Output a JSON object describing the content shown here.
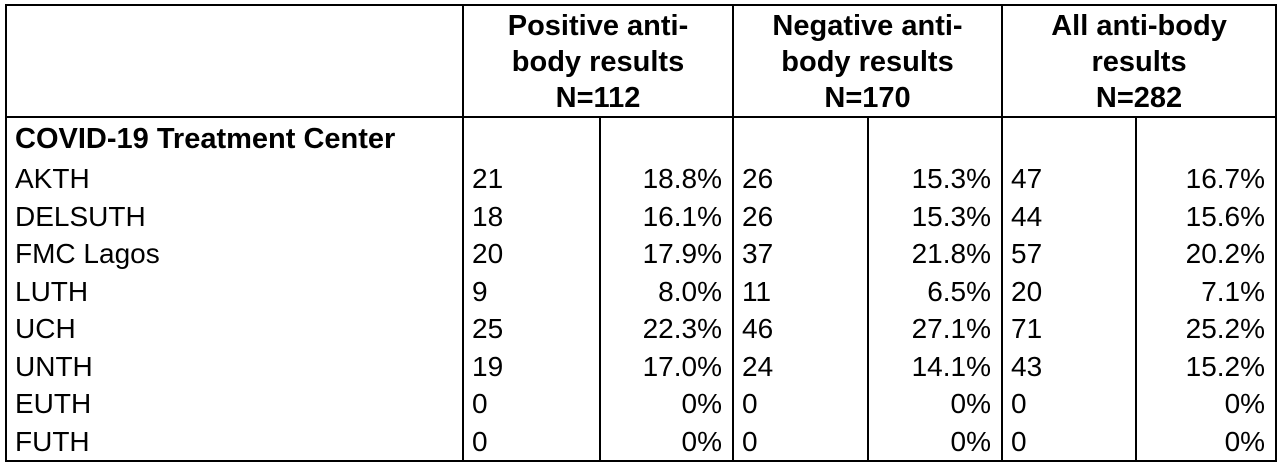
{
  "header": {
    "groups": [
      {
        "line1": "Positive anti-",
        "line2": "body results",
        "line3": "N=112"
      },
      {
        "line1": "Negative anti-",
        "line2": "body results",
        "line3": "N=170"
      },
      {
        "line1": "All anti-body",
        "line2": "results",
        "line3": "N=282"
      }
    ]
  },
  "section_label": "COVID-19 Treatment Center",
  "rows": [
    {
      "name": "AKTH",
      "pos_n": "21",
      "pos_pct": "18.8%",
      "neg_n": "26",
      "neg_pct": "15.3%",
      "all_n": "47",
      "all_pct": "16.7%"
    },
    {
      "name": "DELSUTH",
      "pos_n": "18",
      "pos_pct": "16.1%",
      "neg_n": "26",
      "neg_pct": "15.3%",
      "all_n": "44",
      "all_pct": "15.6%"
    },
    {
      "name": "FMC Lagos",
      "pos_n": "20",
      "pos_pct": "17.9%",
      "neg_n": "37",
      "neg_pct": "21.8%",
      "all_n": "57",
      "all_pct": "20.2%"
    },
    {
      "name": "LUTH",
      "pos_n": "9",
      "pos_pct": "8.0%",
      "neg_n": "11",
      "neg_pct": "6.5%",
      "all_n": "20",
      "all_pct": "7.1%"
    },
    {
      "name": "UCH",
      "pos_n": "25",
      "pos_pct": "22.3%",
      "neg_n": "46",
      "neg_pct": "27.1%",
      "all_n": "71",
      "all_pct": "25.2%"
    },
    {
      "name": "UNTH",
      "pos_n": "19",
      "pos_pct": "17.0%",
      "neg_n": "24",
      "neg_pct": "14.1%",
      "all_n": "43",
      "all_pct": "15.2%"
    },
    {
      "name": "EUTH",
      "pos_n": "0",
      "pos_pct": "0%",
      "neg_n": "0",
      "neg_pct": "0%",
      "all_n": "0",
      "all_pct": "0%"
    },
    {
      "name": "FUTH",
      "pos_n": "0",
      "pos_pct": "0%",
      "neg_n": "0",
      "neg_pct": "0%",
      "all_n": "0",
      "all_pct": "0%"
    }
  ]
}
